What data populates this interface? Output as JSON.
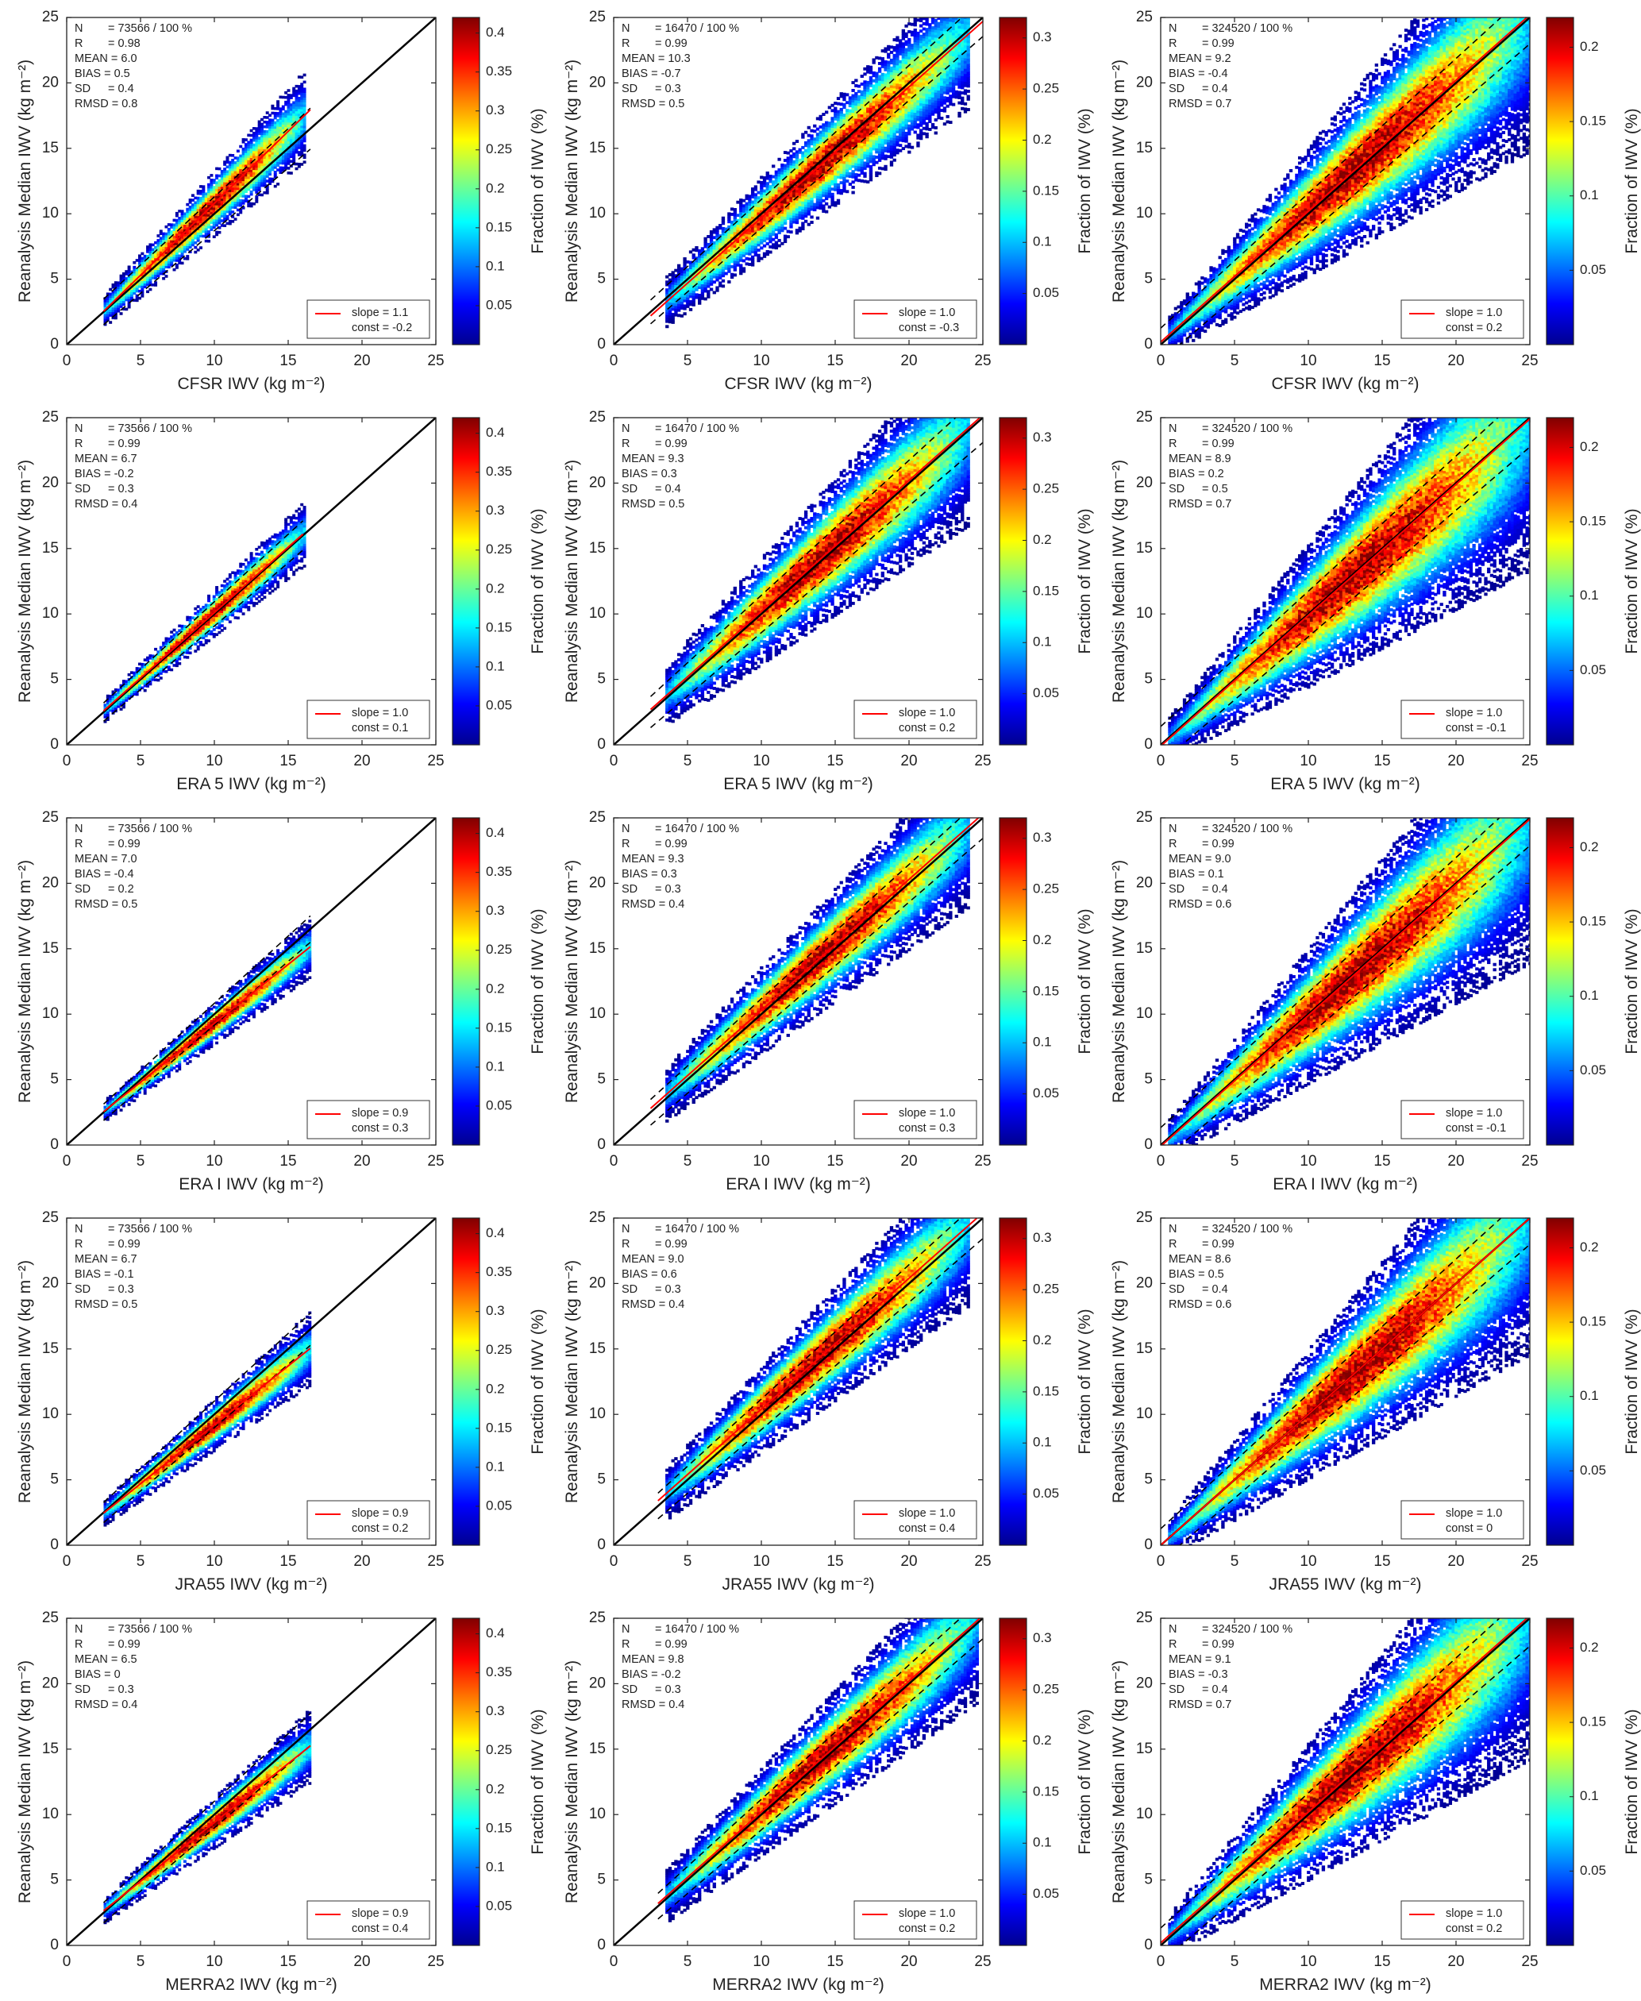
{
  "figure": {
    "ylabel": "Reanalysis Median IWV",
    "units": "(kg m⁻²)",
    "colorbar_label": "Fraction of IWV (%)",
    "legend_slope_label": "slope =",
    "legend_const_label": "const =",
    "colormap": [
      "#00008f",
      "#0000ff",
      "#0080ff",
      "#00ffff",
      "#80ff80",
      "#ffff00",
      "#ff8000",
      "#ff0000",
      "#800000"
    ],
    "fit_color": "#ff0000",
    "one_to_one_color": "#000000"
  },
  "chart_data": [
    {
      "type": "heatmap",
      "xlabel": "CFSR IWV",
      "ylabel": "Reanalysis Median IWV",
      "xlim": [
        0,
        25
      ],
      "ylim": [
        0,
        25
      ],
      "xticks": [
        0,
        5,
        10,
        15,
        20,
        25
      ],
      "yticks": [
        0,
        5,
        10,
        15,
        20,
        25
      ],
      "cbar_ticks": [
        "0.05",
        "0.1",
        "0.15",
        "0.2",
        "0.25",
        "0.3",
        "0.35",
        "0.4"
      ],
      "cbar_max": 0.42,
      "stats": {
        "N": "= 73566 / 100 %",
        "R": "= 0.98",
        "MEAN": "= 6.0",
        "BIAS": "= 0.5",
        "SD": "= 0.4",
        "RMSD": "= 0.8"
      },
      "slope_text": "1.1",
      "const_text": "-0.2",
      "fit": {
        "slope": 1.1,
        "const": -0.2,
        "x": [
          2.5,
          16.5
        ]
      },
      "range": [
        2.5,
        16
      ],
      "spread": 0.7,
      "region": 0
    },
    {
      "type": "heatmap",
      "xlabel": "CFSR IWV",
      "ylabel": "Reanalysis Median IWV",
      "xlim": [
        0,
        25
      ],
      "ylim": [
        0,
        25
      ],
      "xticks": [
        0,
        5,
        10,
        15,
        20,
        25
      ],
      "yticks": [
        0,
        5,
        10,
        15,
        20,
        25
      ],
      "cbar_ticks": [
        "0.05",
        "0.1",
        "0.15",
        "0.2",
        "0.25",
        "0.3"
      ],
      "cbar_max": 0.32,
      "stats": {
        "N": "= 16470 / 100 %",
        "R": "= 0.99",
        "MEAN": "= 10.3",
        "BIAS": "= -0.7",
        "SD": "= 0.3",
        "RMSD": "= 0.5"
      },
      "slope_text": "1.0",
      "const_text": "-0.3",
      "fit": {
        "slope": 1.0,
        "const": -0.3,
        "x": [
          2.5,
          25
        ]
      },
      "range": [
        3.5,
        24
      ],
      "spread": 0.65,
      "region": 1
    },
    {
      "type": "heatmap",
      "xlabel": "CFSR IWV",
      "ylabel": "Reanalysis Median IWV",
      "xlim": [
        0,
        25
      ],
      "ylim": [
        0,
        25
      ],
      "xticks": [
        0,
        5,
        10,
        15,
        20,
        25
      ],
      "yticks": [
        0,
        5,
        10,
        15,
        20,
        25
      ],
      "cbar_ticks": [
        "0.05",
        "0.1",
        "0.15",
        "0.2"
      ],
      "cbar_max": 0.22,
      "stats": {
        "N": "= 324520 / 100 %",
        "R": "= 0.99",
        "MEAN": "= 9.2",
        "BIAS": "= -0.4",
        "SD": "= 0.4",
        "RMSD": "= 0.7"
      },
      "slope_text": "1.0",
      "const_text": "0.2",
      "fit": {
        "slope": 1.0,
        "const": 0.2,
        "x": [
          0,
          25
        ]
      },
      "range": [
        0.5,
        25
      ],
      "spread": 0.9,
      "region": 2
    },
    {
      "type": "heatmap",
      "xlabel": "ERA 5 IWV",
      "ylabel": "Reanalysis Median IWV",
      "xlim": [
        0,
        25
      ],
      "ylim": [
        0,
        25
      ],
      "xticks": [
        0,
        5,
        10,
        15,
        20,
        25
      ],
      "yticks": [
        0,
        5,
        10,
        15,
        20,
        25
      ],
      "cbar_ticks": [
        "0.05",
        "0.1",
        "0.15",
        "0.2",
        "0.25",
        "0.3",
        "0.35",
        "0.4"
      ],
      "cbar_max": 0.42,
      "stats": {
        "N": "= 73566 / 100 %",
        "R": "= 0.99",
        "MEAN": "= 6.7",
        "BIAS": "= -0.2",
        "SD": "= 0.3",
        "RMSD": "= 0.4"
      },
      "slope_text": "1.0",
      "const_text": "0.1",
      "fit": {
        "slope": 1.0,
        "const": 0.1,
        "x": [
          2.5,
          16
        ]
      },
      "range": [
        2.5,
        16
      ],
      "spread": 0.5,
      "region": 0
    },
    {
      "type": "heatmap",
      "xlabel": "ERA 5 IWV",
      "ylabel": "Reanalysis Median IWV",
      "xlim": [
        0,
        25
      ],
      "ylim": [
        0,
        25
      ],
      "xticks": [
        0,
        5,
        10,
        15,
        20,
        25
      ],
      "yticks": [
        0,
        5,
        10,
        15,
        20,
        25
      ],
      "cbar_ticks": [
        "0.05",
        "0.1",
        "0.15",
        "0.2",
        "0.25",
        "0.3"
      ],
      "cbar_max": 0.32,
      "stats": {
        "N": "= 16470 / 100 %",
        "R": "= 0.99",
        "MEAN": "= 9.3",
        "BIAS": "= 0.3",
        "SD": "= 0.4",
        "RMSD": "= 0.5"
      },
      "slope_text": "1.0",
      "const_text": "0.2",
      "fit": {
        "slope": 1.0,
        "const": 0.2,
        "x": [
          2.5,
          25
        ]
      },
      "range": [
        3.5,
        24
      ],
      "spread": 0.85,
      "region": 1
    },
    {
      "type": "heatmap",
      "xlabel": "ERA 5 IWV",
      "ylabel": "Reanalysis Median IWV",
      "xlim": [
        0,
        25
      ],
      "ylim": [
        0,
        25
      ],
      "xticks": [
        0,
        5,
        10,
        15,
        20,
        25
      ],
      "yticks": [
        0,
        5,
        10,
        15,
        20,
        25
      ],
      "cbar_ticks": [
        "0.05",
        "0.1",
        "0.15",
        "0.2"
      ],
      "cbar_max": 0.22,
      "stats": {
        "N": "= 324520 / 100 %",
        "R": "= 0.99",
        "MEAN": "= 8.9",
        "BIAS": "= 0.2",
        "SD": "= 0.5",
        "RMSD": "= 0.7"
      },
      "slope_text": "1.0",
      "const_text": "-0.1",
      "fit": {
        "slope": 1.0,
        "const": -0.1,
        "x": [
          0,
          25
        ]
      },
      "range": [
        0.5,
        25
      ],
      "spread": 1.0,
      "region": 2
    },
    {
      "type": "heatmap",
      "xlabel": "ERA I IWV",
      "ylabel": "Reanalysis Median IWV",
      "xlim": [
        0,
        25
      ],
      "ylim": [
        0,
        25
      ],
      "xticks": [
        0,
        5,
        10,
        15,
        20,
        25
      ],
      "yticks": [
        0,
        5,
        10,
        15,
        20,
        25
      ],
      "cbar_ticks": [
        "0.05",
        "0.1",
        "0.15",
        "0.2",
        "0.25",
        "0.3",
        "0.35",
        "0.4"
      ],
      "cbar_max": 0.42,
      "stats": {
        "N": "= 73566 / 100 %",
        "R": "= 0.99",
        "MEAN": "= 7.0",
        "BIAS": "= -0.4",
        "SD": "= 0.2",
        "RMSD": "= 0.5"
      },
      "slope_text": "0.9",
      "const_text": "0.3",
      "fit": {
        "slope": 0.9,
        "const": 0.3,
        "x": [
          2.5,
          16.5
        ]
      },
      "range": [
        2.5,
        16.5
      ],
      "spread": 0.45,
      "region": 0
    },
    {
      "type": "heatmap",
      "xlabel": "ERA I IWV",
      "ylabel": "Reanalysis Median IWV",
      "xlim": [
        0,
        25
      ],
      "ylim": [
        0,
        25
      ],
      "xticks": [
        0,
        5,
        10,
        15,
        20,
        25
      ],
      "yticks": [
        0,
        5,
        10,
        15,
        20,
        25
      ],
      "cbar_ticks": [
        "0.05",
        "0.1",
        "0.15",
        "0.2",
        "0.25",
        "0.3"
      ],
      "cbar_max": 0.32,
      "stats": {
        "N": "= 16470 / 100 %",
        "R": "= 0.99",
        "MEAN": "= 9.3",
        "BIAS": "= 0.3",
        "SD": "= 0.3",
        "RMSD": "= 0.4"
      },
      "slope_text": "1.0",
      "const_text": "0.3",
      "fit": {
        "slope": 1.0,
        "const": 0.3,
        "x": [
          2.5,
          25
        ]
      },
      "range": [
        3.5,
        24
      ],
      "spread": 0.7,
      "region": 1
    },
    {
      "type": "heatmap",
      "xlabel": "ERA I IWV",
      "ylabel": "Reanalysis Median IWV",
      "xlim": [
        0,
        25
      ],
      "ylim": [
        0,
        25
      ],
      "xticks": [
        0,
        5,
        10,
        15,
        20,
        25
      ],
      "yticks": [
        0,
        5,
        10,
        15,
        20,
        25
      ],
      "cbar_ticks": [
        "0.05",
        "0.1",
        "0.15",
        "0.2"
      ],
      "cbar_max": 0.22,
      "stats": {
        "N": "= 324520 / 100 %",
        "R": "= 0.99",
        "MEAN": "= 9.0",
        "BIAS": "= 0.1",
        "SD": "= 0.4",
        "RMSD": "= 0.6"
      },
      "slope_text": "1.0",
      "const_text": "-0.1",
      "fit": {
        "slope": 1.0,
        "const": -0.1,
        "x": [
          0,
          25
        ]
      },
      "range": [
        0.5,
        25
      ],
      "spread": 0.95,
      "region": 2
    },
    {
      "type": "heatmap",
      "xlabel": "JRA55 IWV",
      "ylabel": "Reanalysis Median IWV",
      "xlim": [
        0,
        25
      ],
      "ylim": [
        0,
        25
      ],
      "xticks": [
        0,
        5,
        10,
        15,
        20,
        25
      ],
      "yticks": [
        0,
        5,
        10,
        15,
        20,
        25
      ],
      "cbar_ticks": [
        "0.05",
        "0.1",
        "0.15",
        "0.2",
        "0.25",
        "0.3",
        "0.35",
        "0.4"
      ],
      "cbar_max": 0.42,
      "stats": {
        "N": "= 73566 / 100 %",
        "R": "= 0.99",
        "MEAN": "= 6.7",
        "BIAS": "= -0.1",
        "SD": "= 0.3",
        "RMSD": "= 0.5"
      },
      "slope_text": "0.9",
      "const_text": "0.2",
      "fit": {
        "slope": 0.9,
        "const": 0.2,
        "x": [
          2.5,
          16.5
        ]
      },
      "range": [
        2.5,
        16.5
      ],
      "spread": 0.55,
      "region": 0
    },
    {
      "type": "heatmap",
      "xlabel": "JRA55 IWV",
      "ylabel": "Reanalysis Median IWV",
      "xlim": [
        0,
        25
      ],
      "ylim": [
        0,
        25
      ],
      "xticks": [
        0,
        5,
        10,
        15,
        20,
        25
      ],
      "yticks": [
        0,
        5,
        10,
        15,
        20,
        25
      ],
      "cbar_ticks": [
        "0.05",
        "0.1",
        "0.15",
        "0.2",
        "0.25",
        "0.3"
      ],
      "cbar_max": 0.32,
      "stats": {
        "N": "= 16470 / 100 %",
        "R": "= 0.99",
        "MEAN": "= 9.0",
        "BIAS": "= 0.6",
        "SD": "= 0.3",
        "RMSD": "= 0.4"
      },
      "slope_text": "1.0",
      "const_text": "0.4",
      "fit": {
        "slope": 1.0,
        "const": 0.4,
        "x": [
          3,
          25
        ]
      },
      "range": [
        3.5,
        24
      ],
      "spread": 0.7,
      "region": 1
    },
    {
      "type": "heatmap",
      "xlabel": "JRA55 IWV",
      "ylabel": "Reanalysis Median IWV",
      "xlim": [
        0,
        25
      ],
      "ylim": [
        0,
        25
      ],
      "xticks": [
        0,
        5,
        10,
        15,
        20,
        25
      ],
      "yticks": [
        0,
        5,
        10,
        15,
        20,
        25
      ],
      "cbar_ticks": [
        "0.05",
        "0.1",
        "0.15",
        "0.2"
      ],
      "cbar_max": 0.22,
      "stats": {
        "N": "= 324520 / 100 %",
        "R": "= 0.99",
        "MEAN": "= 8.6",
        "BIAS": "= 0.5",
        "SD": "= 0.4",
        "RMSD": "= 0.6"
      },
      "slope_text": "1.0",
      "const_text": "0",
      "fit": {
        "slope": 1.0,
        "const": 0,
        "x": [
          0,
          25
        ]
      },
      "range": [
        0.5,
        25
      ],
      "spread": 0.9,
      "region": 2
    },
    {
      "type": "heatmap",
      "xlabel": "MERRA2 IWV",
      "ylabel": "Reanalysis Median IWV",
      "xlim": [
        0,
        25
      ],
      "ylim": [
        0,
        25
      ],
      "xticks": [
        0,
        5,
        10,
        15,
        20,
        25
      ],
      "yticks": [
        0,
        5,
        10,
        15,
        20,
        25
      ],
      "cbar_ticks": [
        "0.05",
        "0.1",
        "0.15",
        "0.2",
        "0.25",
        "0.3",
        "0.35",
        "0.4"
      ],
      "cbar_max": 0.42,
      "stats": {
        "N": "= 73566 / 100 %",
        "R": "= 0.99",
        "MEAN": "= 6.5",
        "BIAS": "= 0",
        "SD": "= 0.3",
        "RMSD": "= 0.4"
      },
      "slope_text": "0.9",
      "const_text": "0.4",
      "fit": {
        "slope": 0.9,
        "const": 0.4,
        "x": [
          2.5,
          16.5
        ]
      },
      "range": [
        2.5,
        16.5
      ],
      "spread": 0.55,
      "region": 0
    },
    {
      "type": "heatmap",
      "xlabel": "MERRA2 IWV",
      "ylabel": "Reanalysis Median IWV",
      "xlim": [
        0,
        25
      ],
      "ylim": [
        0,
        25
      ],
      "xticks": [
        0,
        5,
        10,
        15,
        20,
        25
      ],
      "yticks": [
        0,
        5,
        10,
        15,
        20,
        25
      ],
      "cbar_ticks": [
        "0.05",
        "0.1",
        "0.15",
        "0.2",
        "0.25",
        "0.3"
      ],
      "cbar_max": 0.32,
      "stats": {
        "N": "= 16470 / 100 %",
        "R": "= 0.99",
        "MEAN": "= 9.8",
        "BIAS": "= -0.2",
        "SD": "= 0.3",
        "RMSD": "= 0.4"
      },
      "slope_text": "1.0",
      "const_text": "0.2",
      "fit": {
        "slope": 1.0,
        "const": 0.2,
        "x": [
          3,
          25
        ]
      },
      "range": [
        3.5,
        24.5
      ],
      "spread": 0.7,
      "region": 1
    },
    {
      "type": "heatmap",
      "xlabel": "MERRA2 IWV",
      "ylabel": "Reanalysis Median IWV",
      "xlim": [
        0,
        25
      ],
      "ylim": [
        0,
        25
      ],
      "xticks": [
        0,
        5,
        10,
        15,
        20,
        25
      ],
      "yticks": [
        0,
        5,
        10,
        15,
        20,
        25
      ],
      "cbar_ticks": [
        "0.05",
        "0.1",
        "0.15",
        "0.2"
      ],
      "cbar_max": 0.22,
      "stats": {
        "N": "= 324520 / 100 %",
        "R": "= 0.99",
        "MEAN": "= 9.1",
        "BIAS": "= -0.3",
        "SD": "= 0.4",
        "RMSD": "= 0.7"
      },
      "slope_text": "1.0",
      "const_text": "0.2",
      "fit": {
        "slope": 1.0,
        "const": 0.2,
        "x": [
          0,
          25
        ]
      },
      "range": [
        0.5,
        25
      ],
      "spread": 0.95,
      "region": 2
    }
  ]
}
